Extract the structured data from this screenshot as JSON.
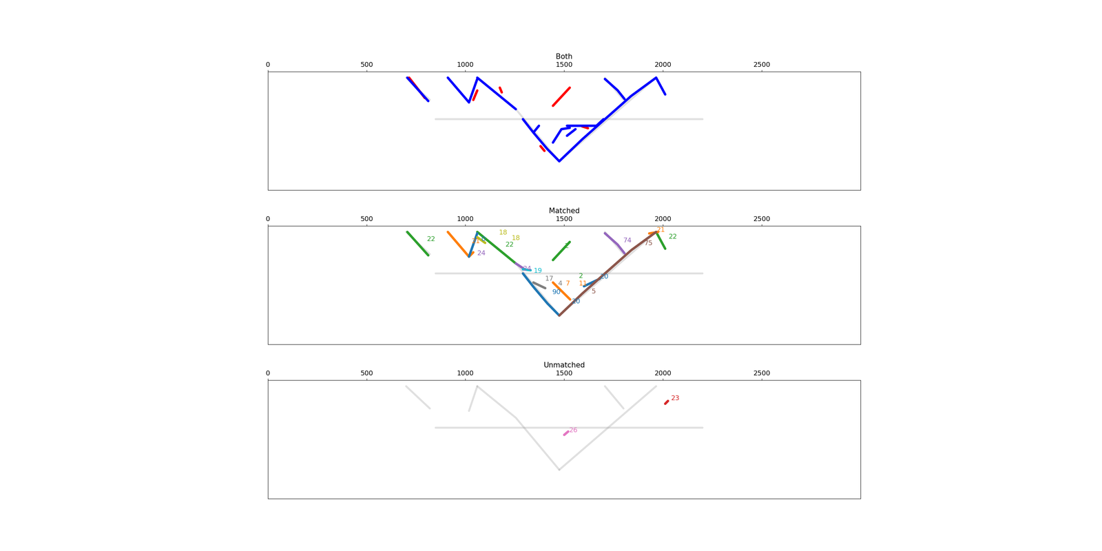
{
  "chart_data": [
    {
      "type": "line",
      "title": "Both",
      "xlim": [
        0,
        3000
      ],
      "xticks": [
        0,
        500,
        1000,
        1500,
        2000,
        2500
      ],
      "ylim": [
        628,
        0
      ],
      "tick_labels": "x",
      "background": {
        "color": "#999999",
        "lines": [
          [
            [
              1060,
              32
            ],
            [
              1255,
              199
            ],
            [
              1475,
              475
            ]
          ],
          [
            [
              1475,
              475
            ],
            [
              1965,
              32
            ]
          ],
          [
            [
              850,
              252
            ],
            [
              2200,
              252
            ]
          ],
          [
            [
              1060,
              32
            ],
            [
              1018,
              163
            ]
          ],
          [
            [
              1706,
              32
            ],
            [
              1800,
              150
            ]
          ],
          [
            [
              700,
              32
            ],
            [
              820,
              150
            ]
          ]
        ]
      },
      "series": [
        {
          "color": "#ff0000",
          "lines": [
            [
              [
                1443,
                181
              ],
              [
                1528,
                85
              ]
            ],
            [
              [
                1174,
                85
              ],
              [
                1184,
                110
              ]
            ],
            [
              [
                715,
                32
              ],
              [
                795,
                140
              ]
            ],
            [
              [
                1040,
                150
              ],
              [
                1060,
                100
              ]
            ],
            [
              [
                1380,
                395
              ],
              [
                1400,
                420
              ]
            ],
            [
              [
                1590,
                290
              ],
              [
                1620,
                300
              ]
            ]
          ]
        },
        {
          "color": "#0000ff",
          "lines": [
            [
              [
                706,
                32
              ],
              [
                812,
                156
              ]
            ],
            [
              [
                911,
                32
              ],
              [
                1018,
                163
              ]
            ],
            [
              [
                1018,
                163
              ],
              [
                1060,
                39
              ]
            ],
            [
              [
                1060,
                32
              ],
              [
                1255,
                199
              ]
            ],
            [
              [
                1291,
                252
              ],
              [
                1344,
                323
              ],
              [
                1415,
                411
              ],
              [
                1475,
                475
              ]
            ],
            [
              [
                1475,
                475
              ],
              [
                1592,
                358
              ],
              [
                1706,
                252
              ],
              [
                1840,
                128
              ],
              [
                1965,
                32
              ]
            ],
            [
              [
                1965,
                32
              ],
              [
                2011,
                121
              ]
            ],
            [
              [
                1706,
                39
              ],
              [
                1770,
                99
              ],
              [
                1805,
                145
              ]
            ],
            [
              [
                1344,
                323
              ],
              [
                1372,
                287
              ]
            ],
            [
              [
                1443,
                376
              ],
              [
                1486,
                305
              ],
              [
                1528,
                298
              ]
            ],
            [
              [
                1514,
                340
              ],
              [
                1557,
                305
              ]
            ],
            [
              [
                1514,
                287
              ],
              [
                1663,
                287
              ],
              [
                1699,
                252
              ]
            ]
          ]
        }
      ]
    },
    {
      "type": "line",
      "title": "Matched",
      "xlim": [
        0,
        3000
      ],
      "xticks": [
        0,
        500,
        1000,
        1500,
        2000,
        2500
      ],
      "ylim": [
        628,
        0
      ],
      "tick_labels": "x",
      "background": {
        "color": "#999999",
        "lines": [
          [
            [
              1060,
              32
            ],
            [
              1255,
              199
            ],
            [
              1475,
              475
            ]
          ],
          [
            [
              1475,
              475
            ],
            [
              1965,
              32
            ]
          ],
          [
            [
              850,
              252
            ],
            [
              2200,
              252
            ]
          ],
          [
            [
              1060,
              32
            ],
            [
              1018,
              163
            ]
          ],
          [
            [
              1706,
              32
            ],
            [
              1800,
              150
            ]
          ],
          [
            [
              700,
              32
            ],
            [
              820,
              150
            ]
          ]
        ]
      },
      "series": [
        {
          "color": "#2ca02c",
          "lines": [
            [
              [
                706,
                32
              ],
              [
                812,
                156
              ]
            ],
            [
              [
                1060,
                32
              ],
              [
                1255,
                199
              ]
            ],
            [
              [
                1965,
                32
              ],
              [
                2011,
                121
              ]
            ],
            [
              [
                1443,
                181
              ],
              [
                1528,
                85
              ]
            ]
          ]
        },
        {
          "color": "#ff7f0e",
          "lines": [
            [
              [
                911,
                32
              ],
              [
                1018,
                163
              ]
            ],
            [
              [
                1018,
                163
              ],
              [
                1040,
                140
              ]
            ],
            [
              [
                1443,
                300
              ],
              [
                1530,
                390
              ]
            ],
            [
              [
                1930,
                40
              ],
              [
                1975,
                32
              ]
            ]
          ]
        },
        {
          "color": "#1f77b4",
          "lines": [
            [
              [
                1018,
                163
              ],
              [
                1060,
                39
              ]
            ],
            [
              [
                1291,
                252
              ],
              [
                1344,
                323
              ],
              [
                1415,
                411
              ],
              [
                1475,
                475
              ]
            ],
            [
              [
                1600,
                320
              ],
              [
                1680,
                280
              ]
            ]
          ]
        },
        {
          "color": "#9467bd",
          "lines": [
            [
              [
                1255,
                199
              ],
              [
                1300,
                230
              ]
            ],
            [
              [
                1706,
                39
              ],
              [
                1770,
                99
              ],
              [
                1805,
                145
              ]
            ]
          ]
        },
        {
          "color": "#17becf",
          "lines": [
            [
              [
                1291,
                230
              ],
              [
                1330,
                235
              ]
            ]
          ]
        },
        {
          "color": "#7f7f7f",
          "lines": [
            [
              [
                1344,
                300
              ],
              [
                1404,
                330
              ]
            ]
          ]
        },
        {
          "color": "#8c564b",
          "lines": [
            [
              [
                1475,
                475
              ],
              [
                1592,
                358
              ],
              [
                1706,
                252
              ]
            ],
            [
              [
                1706,
                252
              ],
              [
                1840,
                128
              ],
              [
                1965,
                32
              ]
            ]
          ]
        },
        {
          "color": "#bcbd22",
          "lines": [
            [
              [
                1060,
                60
              ],
              [
                1100,
                90
              ]
            ]
          ]
        }
      ],
      "labels": [
        {
          "text": "22",
          "x": 805,
          "y": 71,
          "color": "#2ca02c"
        },
        {
          "text": "21",
          "x": 1032,
          "y": 82,
          "color": "#ff7f0e"
        },
        {
          "text": "0",
          "x": 1080,
          "y": 71,
          "color": "#1f77b4"
        },
        {
          "text": "18",
          "x": 1170,
          "y": 35,
          "color": "#bcbd22"
        },
        {
          "text": "18",
          "x": 1235,
          "y": 65,
          "color": "#bcbd22"
        },
        {
          "text": "22",
          "x": 1202,
          "y": 100,
          "color": "#2ca02c"
        },
        {
          "text": "24",
          "x": 1060,
          "y": 145,
          "color": "#9467bd"
        },
        {
          "text": "2",
          "x": 1503,
          "y": 106,
          "color": "#2ca02c"
        },
        {
          "text": "74",
          "x": 1798,
          "y": 78,
          "color": "#9467bd"
        },
        {
          "text": "75",
          "x": 1904,
          "y": 92,
          "color": "#8c564b"
        },
        {
          "text": "21",
          "x": 1968,
          "y": 21,
          "color": "#ff7f0e"
        },
        {
          "text": "22",
          "x": 2028,
          "y": 57,
          "color": "#2ca02c"
        },
        {
          "text": "24",
          "x": 1291,
          "y": 227,
          "color": "#9467bd"
        },
        {
          "text": "19",
          "x": 1345,
          "y": 238,
          "color": "#17becf"
        },
        {
          "text": "17",
          "x": 1404,
          "y": 280,
          "color": "#7f7f7f"
        },
        {
          "text": "4",
          "x": 1468,
          "y": 305,
          "color": "#7f7f7f"
        },
        {
          "text": "7",
          "x": 1507,
          "y": 305,
          "color": "#ff7f0e"
        },
        {
          "text": "11",
          "x": 1574,
          "y": 305,
          "color": "#ff7f0e"
        },
        {
          "text": "2",
          "x": 1574,
          "y": 265,
          "color": "#2ca02c"
        },
        {
          "text": "20",
          "x": 1681,
          "y": 270,
          "color": "#1f77b4"
        },
        {
          "text": "5",
          "x": 1638,
          "y": 347,
          "color": "#8c564b"
        },
        {
          "text": "90",
          "x": 1440,
          "y": 351,
          "color": "#1f77b4"
        },
        {
          "text": "20",
          "x": 1539,
          "y": 401,
          "color": "#1f77b4"
        }
      ]
    },
    {
      "type": "line",
      "title": "Unmatched",
      "xlim": [
        0,
        3000
      ],
      "xticks": [
        0,
        500,
        1000,
        1500,
        2000,
        2500
      ],
      "ylim": [
        628,
        0
      ],
      "tick_labels": "x",
      "background": {
        "color": "#999999",
        "lines": [
          [
            [
              1060,
              32
            ],
            [
              1255,
              199
            ],
            [
              1475,
              475
            ]
          ],
          [
            [
              1475,
              475
            ],
            [
              1965,
              32
            ]
          ],
          [
            [
              850,
              252
            ],
            [
              2200,
              252
            ]
          ],
          [
            [
              1060,
              32
            ],
            [
              1018,
              163
            ]
          ],
          [
            [
              1706,
              32
            ],
            [
              1800,
              150
            ]
          ],
          [
            [
              700,
              32
            ],
            [
              820,
              150
            ]
          ]
        ]
      },
      "series": [
        {
          "color": "#d62728",
          "lines": [
            [
              [
                2011,
                125
              ],
              [
                2025,
                110
              ]
            ]
          ]
        },
        {
          "color": "#e377c2",
          "lines": [
            [
              [
                1500,
                290
              ],
              [
                1520,
                272
              ]
            ]
          ]
        }
      ],
      "labels": [
        {
          "text": "23",
          "x": 2040,
          "y": 96,
          "color": "#d62728"
        },
        {
          "text": "26",
          "x": 1525,
          "y": 266,
          "color": "#e377c2"
        }
      ]
    }
  ]
}
